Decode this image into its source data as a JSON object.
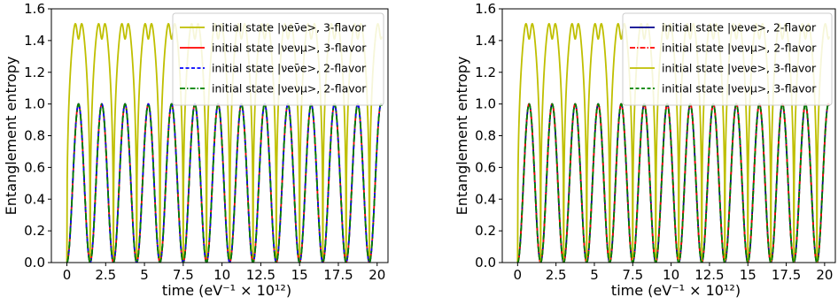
{
  "chart_data": [
    {
      "type": "line",
      "xlabel": "time (eV⁻¹ × 10¹²)",
      "ylabel": "Entanglement entropy",
      "xlim": [
        -1,
        20.7
      ],
      "ylim": [
        0,
        1.6
      ],
      "xticks": [
        "0",
        "2.5",
        "5",
        "7.5",
        "10",
        "12.5",
        "15",
        "17.5",
        "20"
      ],
      "yticks": [
        "0.0",
        "0.2",
        "0.4",
        "0.6",
        "0.8",
        "1.0",
        "1.2",
        "1.4",
        "1.6"
      ],
      "grid": false,
      "legend_position": "top-right",
      "two_flavor_peak_times": [
        0.75,
        2.25,
        3.75,
        5.25,
        6.75,
        8.25,
        9.75,
        11.25,
        12.75,
        14.25,
        15.75,
        17.25,
        18.75,
        20.25
      ],
      "two_flavor_peak": 1.0,
      "three_flavor_max": 1.585,
      "three_flavor_dip": 1.41,
      "series": [
        {
          "name": "initial state |νeν̄e>, 3-flavor",
          "color": "#bfbf00",
          "style": "solid",
          "curve": "3flavor"
        },
        {
          "name": "initial state |νeνμ>, 3-flavor",
          "color": "#ff0000",
          "style": "solid",
          "curve": "2flavor"
        },
        {
          "name": "initial state |νeν̄e>, 2-flavor",
          "color": "#0000ff",
          "style": "dashed",
          "curve": "2flavor"
        },
        {
          "name": "initial state |νeνμ>, 2-flavor",
          "color": "#008000",
          "style": "dashdot",
          "curve": "2flavor"
        }
      ]
    },
    {
      "type": "line",
      "xlabel": "time (eV⁻¹ × 10¹²)",
      "ylabel": "Entanglement entropy",
      "xlim": [
        -1,
        20.7
      ],
      "ylim": [
        0,
        1.6
      ],
      "xticks": [
        "0",
        "2.5",
        "5",
        "7.5",
        "10",
        "12.5",
        "15",
        "17.5",
        "20"
      ],
      "yticks": [
        "0.0",
        "0.2",
        "0.4",
        "0.6",
        "0.8",
        "1.0",
        "1.2",
        "1.4",
        "1.6"
      ],
      "grid": false,
      "legend_position": "top-right",
      "two_flavor_peak_times": [
        0.75,
        2.25,
        3.75,
        5.25,
        6.75,
        8.25,
        9.75,
        11.25,
        12.75,
        14.25,
        15.75,
        17.25,
        18.75,
        20.25
      ],
      "two_flavor_peak": 1.0,
      "three_flavor_max": 1.585,
      "three_flavor_dip": 1.41,
      "series": [
        {
          "name": "initial state |νeνe>, 2-flavor",
          "color": "#00008b",
          "style": "solid",
          "curve": "2flavor"
        },
        {
          "name": "initial state |νeνμ>, 2-flavor",
          "color": "#ff0000",
          "style": "dashdot",
          "curve": "2flavor"
        },
        {
          "name": "initial state |νeνe>, 3-flavor",
          "color": "#bfbf00",
          "style": "solid",
          "curve": "3flavor"
        },
        {
          "name": "initial state |νeνμ>, 3-flavor",
          "color": "#008000",
          "style": "dashed",
          "curve": "2flavor"
        }
      ]
    }
  ]
}
